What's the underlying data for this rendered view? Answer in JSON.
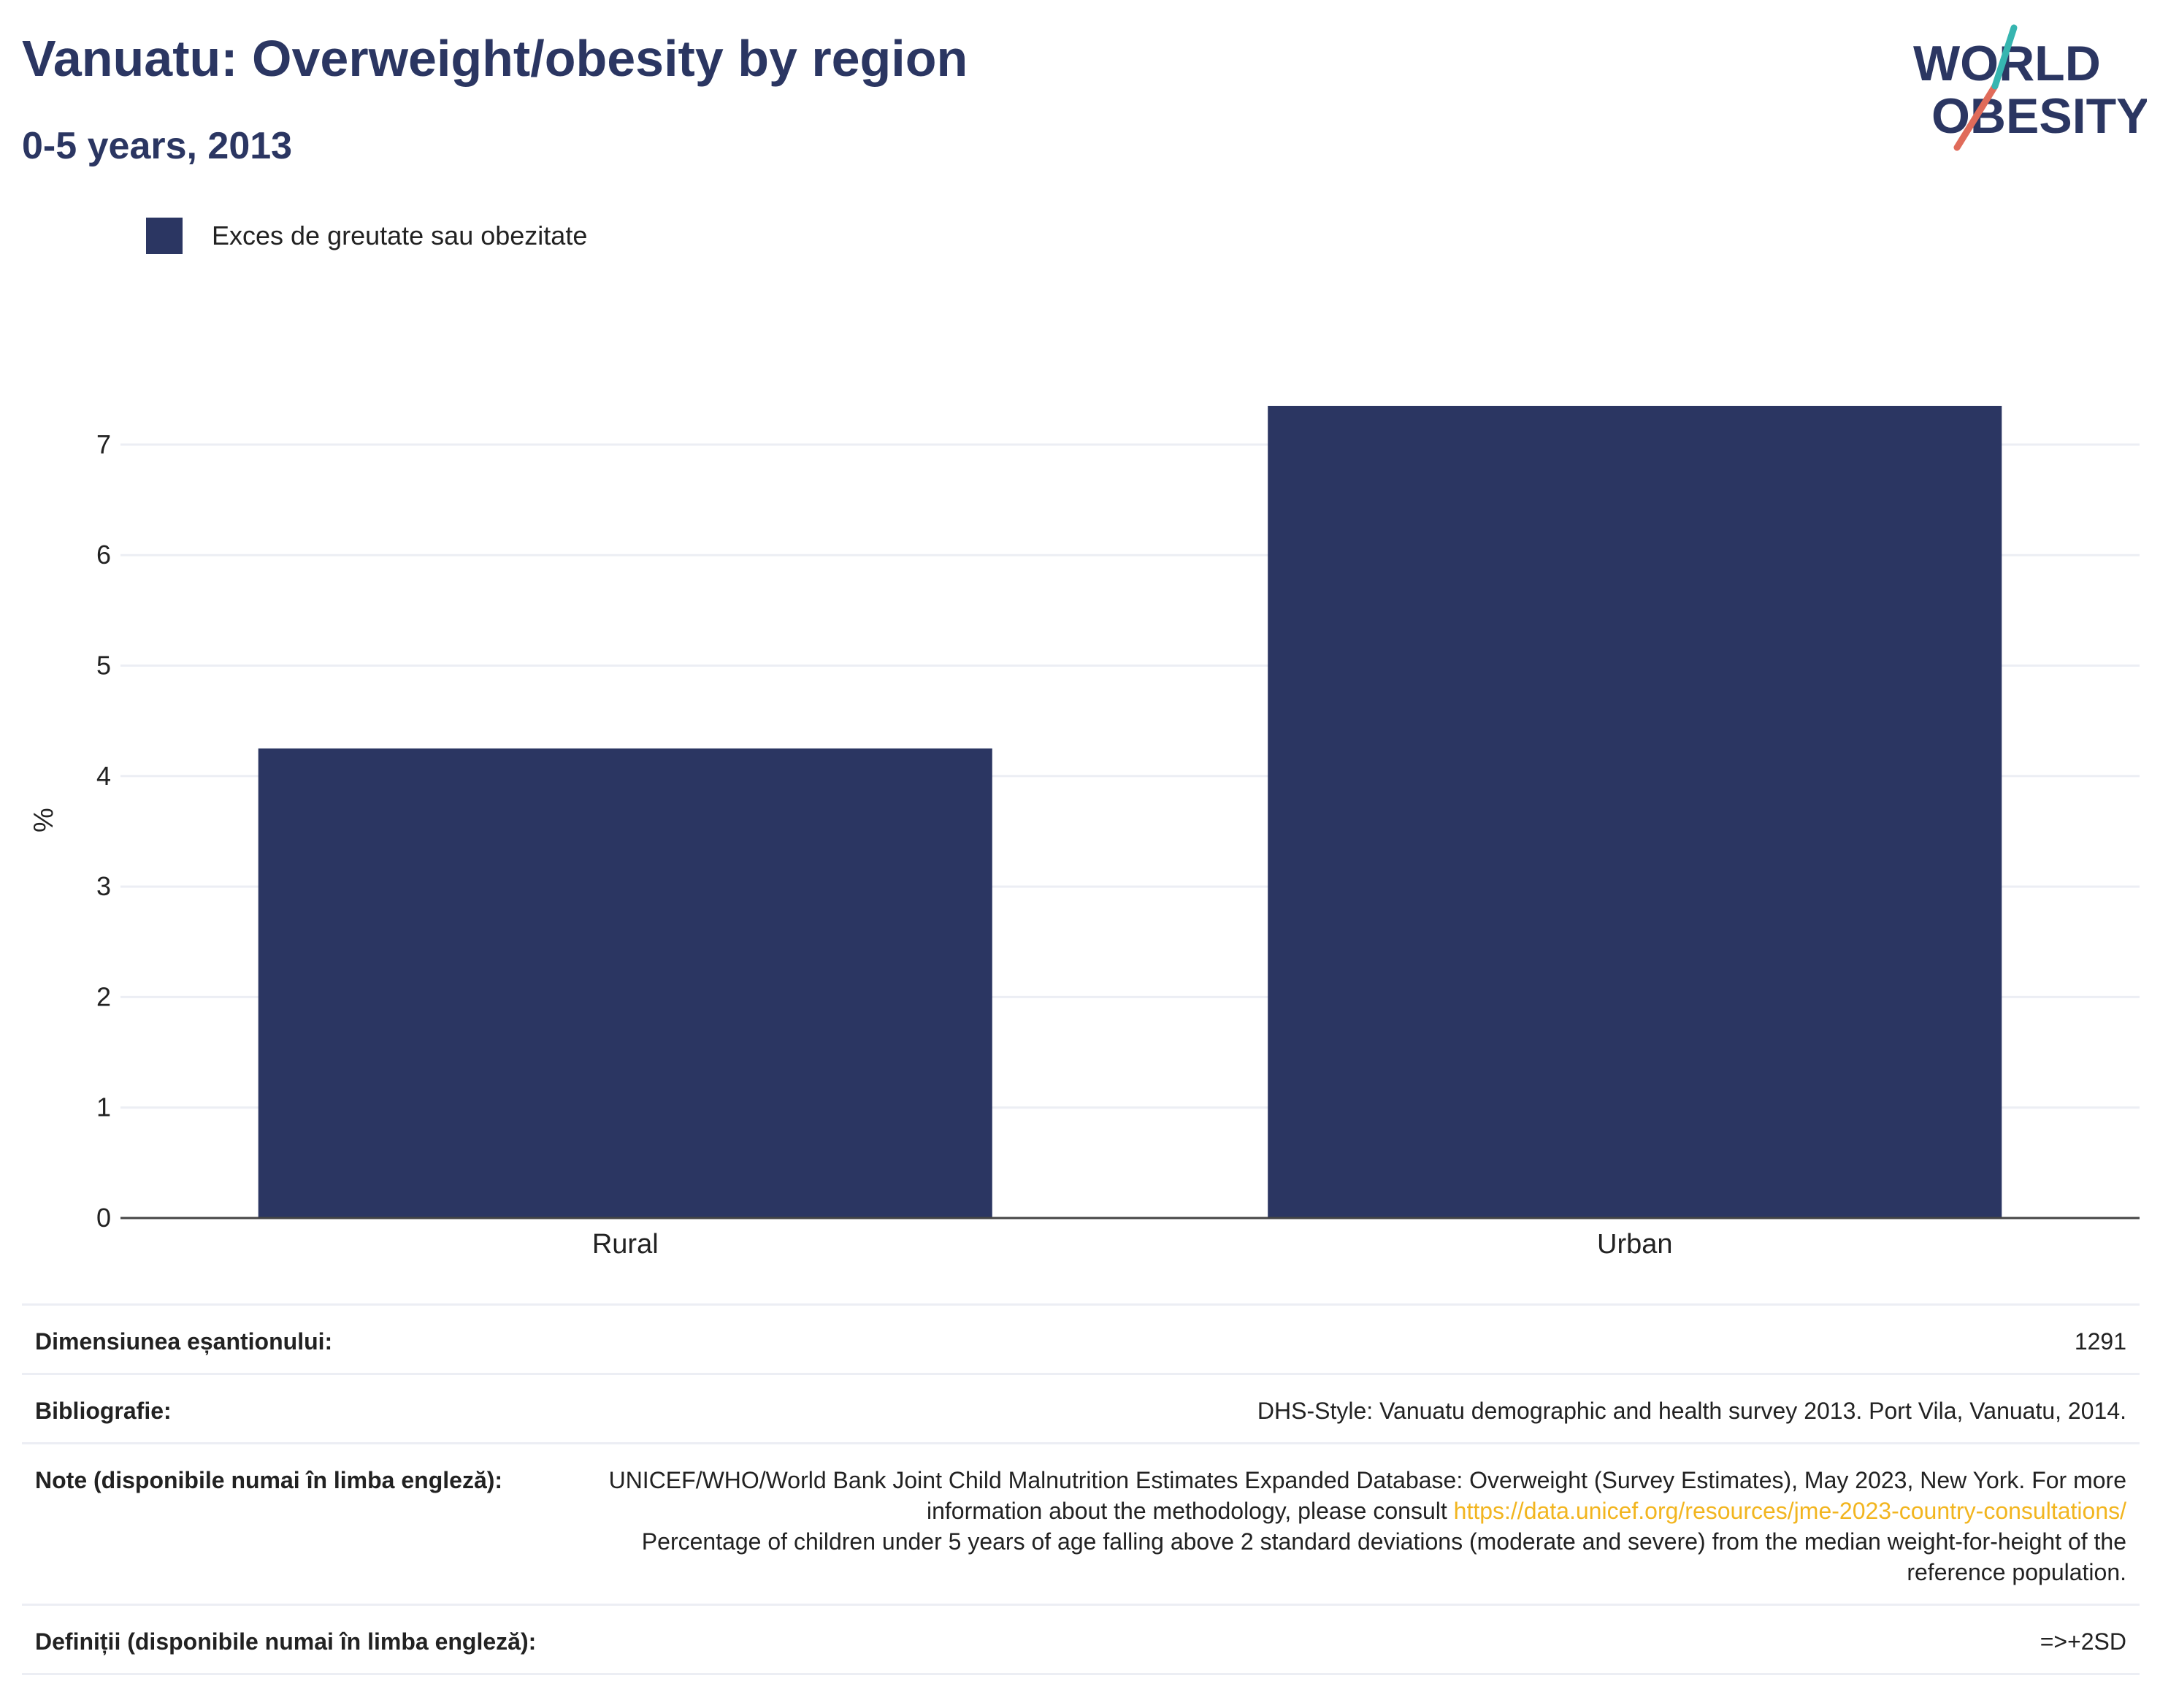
{
  "header": {
    "title": "Vanuatu: Overweight/obesity by region",
    "subtitle": "0-5 years, 2013"
  },
  "logo": {
    "line1": "WORLD",
    "line2": "OBESITY"
  },
  "colors": {
    "bar": "#2b3662",
    "title": "#2b3662",
    "accent_red": "#e06b5a",
    "accent_teal": "#36b5b0",
    "link": "#f2b51f"
  },
  "chart_data": {
    "type": "bar",
    "categories": [
      "Rural",
      "Urban"
    ],
    "series": [
      {
        "name": "Exces de greutate sau obezitate",
        "values": [
          4.25,
          7.35
        ]
      }
    ],
    "ylabel": "%",
    "ylim": [
      0,
      7.6
    ],
    "yticks": [
      "0",
      "1",
      "2",
      "3",
      "4",
      "5",
      "6",
      "7"
    ],
    "grid": true,
    "legend": "top-left"
  },
  "meta": {
    "sample_label": "Dimensiunea eșantionului:",
    "sample_value": "1291",
    "bib_label": "Bibliografie:",
    "bib_value": "DHS-Style: Vanuatu demographic and health survey 2013. Port Vila, Vanuatu, 2014.",
    "notes_label": "Note (disponibile numai în limba engleză):",
    "notes_text1": "UNICEF/WHO/World Bank Joint Child Malnutrition Estimates Expanded Database: Overweight (Survey Estimates), May 2023, New York. For more information about the methodology, please consult",
    "notes_link": "https://data.unicef.org/resources/jme-2023-country-consultations/",
    "notes_text2": "Percentage of children under 5 years of age falling above 2 standard deviations (moderate and severe) from the median weight-for-height of the reference population.",
    "def_label": "Definiții (disponibile numai în limba engleză):",
    "def_value": "=>+2SD"
  }
}
